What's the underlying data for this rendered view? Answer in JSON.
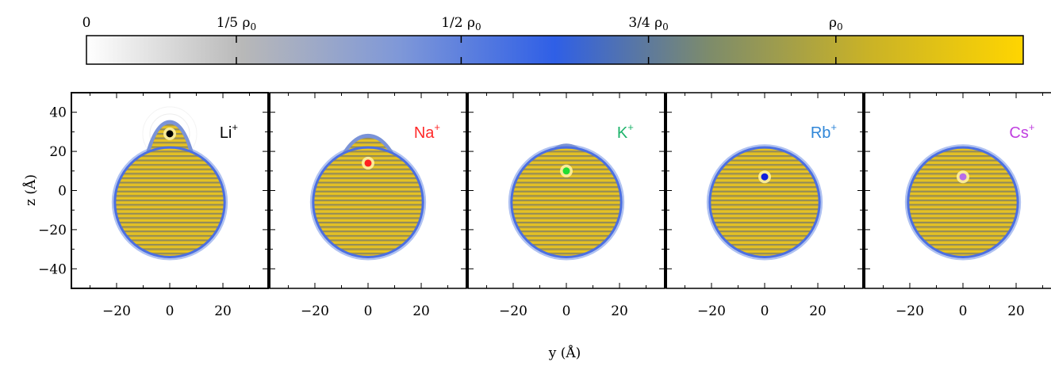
{
  "colorbar": {
    "ticks": [
      {
        "label": "0",
        "value": 0
      },
      {
        "label": "1/5 ρ0",
        "value": 0.2
      },
      {
        "label": "1/2 ρ0",
        "value": 0.5
      },
      {
        "label": "3/4 ρ0",
        "value": 0.75
      },
      {
        "label": "ρ0",
        "value": 1.0
      }
    ],
    "range": [
      0,
      1.25
    ],
    "colors": [
      "#ffffff",
      "#b8b8b8",
      "#7f98d8",
      "#2f5fe6",
      "#7e8c6a",
      "#c9b227",
      "#ffd500"
    ]
  },
  "chart_data": {
    "type": "heatmap",
    "xlabel": "y (Å)",
    "ylabel": "z (Å)",
    "xlim": [
      -37,
      37
    ],
    "ylim": [
      -50,
      50
    ],
    "xticks": [
      -20,
      0,
      20
    ],
    "yticks": [
      -40,
      -20,
      0,
      20,
      40
    ],
    "panels": [
      {
        "ion": "Li",
        "charge": "+",
        "ion_z": 29,
        "ion_color": "#000000",
        "label_color": "#000000",
        "droplet_center_z": -6,
        "droplet_radius": 28,
        "cap_top_z": 36
      },
      {
        "ion": "Na",
        "charge": "+",
        "ion_z": 14,
        "ion_color": "#ff2020",
        "label_color": "#ff2a2a",
        "droplet_center_z": -6,
        "droplet_radius": 28,
        "cap_top_z": 29
      },
      {
        "ion": "K",
        "charge": "+",
        "ion_z": 10,
        "ion_color": "#22dd33",
        "label_color": "#1db36a",
        "droplet_center_z": -6,
        "droplet_radius": 28,
        "cap_top_z": 24
      },
      {
        "ion": "Rb",
        "charge": "+",
        "ion_z": 7,
        "ion_color": "#1020dd",
        "label_color": "#2f86d8",
        "droplet_center_z": -6,
        "droplet_radius": 28,
        "cap_top_z": 22
      },
      {
        "ion": "Cs",
        "charge": "+",
        "ion_z": 7,
        "ion_color": "#b86ce8",
        "label_color": "#c040e0",
        "droplet_center_z": -6,
        "droplet_radius": 28,
        "cap_top_z": 22
      }
    ]
  }
}
